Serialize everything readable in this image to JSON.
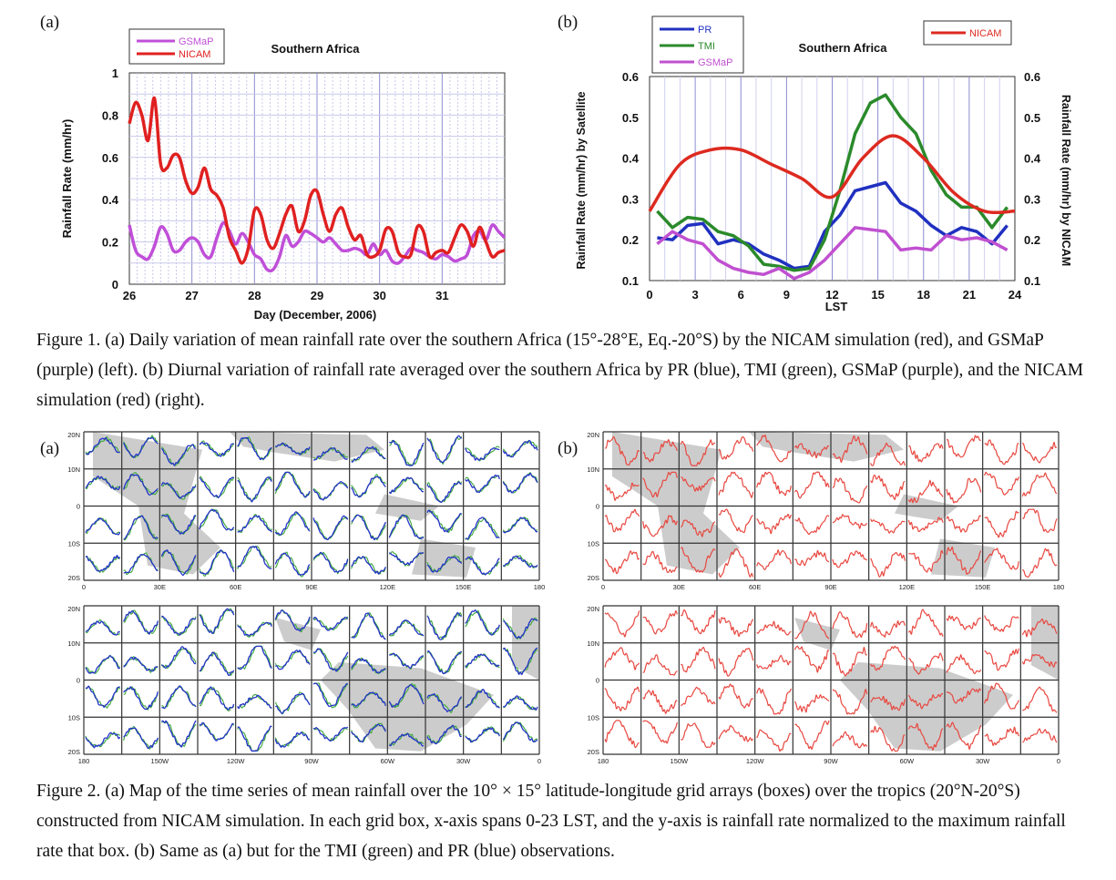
{
  "figure1": {
    "panel_a_label": "(a)",
    "panel_b_label": "(b)",
    "caption": "Figure 1. (a) Daily variation of mean rainfall rate over the southern Africa (15°-28°E, Eq.-20°S) by the NICAM simulation (red), and GSMaP (purple) (left). (b) Diurnal variation of rainfall rate averaged over the southern Africa by PR (blue), TMI (green), GSMaP (purple), and the NICAM simulation (red) (right)."
  },
  "figure2": {
    "panel_a_label": "(a)",
    "panel_b_label": "(b)",
    "lat_labels": [
      "20N",
      "10N",
      "0",
      "10S",
      "20S"
    ],
    "lon_labels_top": [
      "0",
      "30E",
      "60E",
      "90E",
      "120E",
      "150E",
      "180"
    ],
    "lon_labels_bottom": [
      "180",
      "150W",
      "120W",
      "90W",
      "60W",
      "30W",
      "0"
    ],
    "colors": {
      "nicam": "#e8473f",
      "tmi": "#3aa838",
      "pr": "#2432c8",
      "land": "#cccccc",
      "grid": "#333333"
    },
    "caption": "Figure 2. (a) Map of the time series of mean rainfall over the 10° × 15° latitude-longitude grid arrays (boxes) over the tropics (20°N-20°S) constructed from NICAM simulation. In each grid box, x-axis spans 0-23 LST, and the y-axis is rainfall rate normalized to the maximum rainfall rate that box. (b) Same as (a) but for the TMI (green) and PR (blue) observations."
  },
  "chart_data": [
    {
      "type": "line",
      "title": "Southern Africa",
      "xlabel": "Day (December, 2006)",
      "ylabel": "Rainfall Rate (mm/hr)",
      "x_ticks": [
        "26",
        "27",
        "28",
        "29",
        "30",
        "31"
      ],
      "y_ticks": [
        "0",
        "0.2",
        "0.4",
        "0.6",
        "0.8",
        "1"
      ],
      "xlim": [
        26,
        32
      ],
      "ylim": [
        0,
        1
      ],
      "grid": true,
      "legend_position": "top-left",
      "series": [
        {
          "name": "GSMaP",
          "color": "#c04fd8",
          "points": [
            [
              26.0,
              0.28
            ],
            [
              26.1,
              0.16
            ],
            [
              26.2,
              0.13
            ],
            [
              26.3,
              0.12
            ],
            [
              26.4,
              0.18
            ],
            [
              26.5,
              0.27
            ],
            [
              26.6,
              0.24
            ],
            [
              26.7,
              0.16
            ],
            [
              26.8,
              0.16
            ],
            [
              26.9,
              0.2
            ],
            [
              27.0,
              0.22
            ],
            [
              27.1,
              0.2
            ],
            [
              27.2,
              0.14
            ],
            [
              27.3,
              0.13
            ],
            [
              27.4,
              0.22
            ],
            [
              27.5,
              0.29
            ],
            [
              27.6,
              0.25
            ],
            [
              27.7,
              0.19
            ],
            [
              27.8,
              0.24
            ],
            [
              27.9,
              0.2
            ],
            [
              28.0,
              0.14
            ],
            [
              28.1,
              0.12
            ],
            [
              28.2,
              0.07
            ],
            [
              28.3,
              0.07
            ],
            [
              28.4,
              0.13
            ],
            [
              28.5,
              0.23
            ],
            [
              28.6,
              0.18
            ],
            [
              28.7,
              0.2
            ],
            [
              28.8,
              0.25
            ],
            [
              28.9,
              0.24
            ],
            [
              29.0,
              0.22
            ],
            [
              29.1,
              0.2
            ],
            [
              29.2,
              0.22
            ],
            [
              29.3,
              0.19
            ],
            [
              29.4,
              0.16
            ],
            [
              29.5,
              0.16
            ],
            [
              29.6,
              0.17
            ],
            [
              29.7,
              0.16
            ],
            [
              29.8,
              0.14
            ],
            [
              29.9,
              0.19
            ],
            [
              30.0,
              0.14
            ],
            [
              30.1,
              0.16
            ],
            [
              30.2,
              0.11
            ],
            [
              30.3,
              0.1
            ],
            [
              30.4,
              0.13
            ],
            [
              30.5,
              0.17
            ],
            [
              30.6,
              0.16
            ],
            [
              30.7,
              0.15
            ],
            [
              30.8,
              0.13
            ],
            [
              30.9,
              0.12
            ],
            [
              31.0,
              0.14
            ],
            [
              31.1,
              0.13
            ],
            [
              31.2,
              0.11
            ],
            [
              31.3,
              0.12
            ],
            [
              31.4,
              0.14
            ],
            [
              31.5,
              0.23
            ],
            [
              31.6,
              0.25
            ],
            [
              31.7,
              0.21
            ],
            [
              31.8,
              0.28
            ],
            [
              31.9,
              0.25
            ],
            [
              32.0,
              0.22
            ]
          ]
        },
        {
          "name": "NICAM",
          "color": "#e02020",
          "points": [
            [
              26.0,
              0.76
            ],
            [
              26.1,
              0.86
            ],
            [
              26.2,
              0.8
            ],
            [
              26.3,
              0.68
            ],
            [
              26.4,
              0.88
            ],
            [
              26.5,
              0.57
            ],
            [
              26.6,
              0.55
            ],
            [
              26.7,
              0.61
            ],
            [
              26.8,
              0.6
            ],
            [
              26.9,
              0.49
            ],
            [
              27.0,
              0.43
            ],
            [
              27.1,
              0.46
            ],
            [
              27.2,
              0.55
            ],
            [
              27.3,
              0.45
            ],
            [
              27.4,
              0.42
            ],
            [
              27.5,
              0.36
            ],
            [
              27.6,
              0.22
            ],
            [
              27.7,
              0.16
            ],
            [
              27.8,
              0.1
            ],
            [
              27.9,
              0.17
            ],
            [
              28.0,
              0.35
            ],
            [
              28.1,
              0.33
            ],
            [
              28.2,
              0.21
            ],
            [
              28.3,
              0.17
            ],
            [
              28.4,
              0.24
            ],
            [
              28.5,
              0.33
            ],
            [
              28.6,
              0.37
            ],
            [
              28.7,
              0.25
            ],
            [
              28.8,
              0.3
            ],
            [
              28.9,
              0.42
            ],
            [
              29.0,
              0.44
            ],
            [
              29.1,
              0.33
            ],
            [
              29.2,
              0.25
            ],
            [
              29.3,
              0.33
            ],
            [
              29.4,
              0.36
            ],
            [
              29.5,
              0.27
            ],
            [
              29.6,
              0.21
            ],
            [
              29.7,
              0.23
            ],
            [
              29.8,
              0.14
            ],
            [
              29.9,
              0.13
            ],
            [
              30.0,
              0.16
            ],
            [
              30.1,
              0.26
            ],
            [
              30.2,
              0.25
            ],
            [
              30.3,
              0.15
            ],
            [
              30.4,
              0.13
            ],
            [
              30.5,
              0.14
            ],
            [
              30.6,
              0.27
            ],
            [
              30.7,
              0.25
            ],
            [
              30.8,
              0.13
            ],
            [
              30.9,
              0.15
            ],
            [
              31.0,
              0.16
            ],
            [
              31.1,
              0.15
            ],
            [
              31.2,
              0.22
            ],
            [
              31.3,
              0.28
            ],
            [
              31.4,
              0.25
            ],
            [
              31.5,
              0.18
            ],
            [
              31.6,
              0.27
            ],
            [
              31.7,
              0.2
            ],
            [
              31.8,
              0.13
            ],
            [
              31.9,
              0.15
            ],
            [
              32.0,
              0.16
            ]
          ]
        }
      ]
    },
    {
      "type": "line",
      "title": "Southern Africa",
      "xlabel": "LST",
      "ylabel": "Rainfall Rate (mm/hr) by Satellite",
      "ylabel_right": "Rainfall Rate (mm/hr) by NICAM",
      "x_ticks": [
        "0",
        "3",
        "6",
        "9",
        "12",
        "15",
        "18",
        "21",
        "24"
      ],
      "y_ticks": [
        "0.1",
        "0.2",
        "0.3",
        "0.4",
        "0.5",
        "0.6"
      ],
      "xlim": [
        0,
        24
      ],
      "ylim": [
        0.1,
        0.6
      ],
      "ylim_right": [
        0.1,
        0.6
      ],
      "grid": true,
      "legend_position": "top-left",
      "legend_right_position": "top-right",
      "series": [
        {
          "name": "PR",
          "color": "#2030c0",
          "axis": "left",
          "x": [
            0.5,
            1.5,
            2.5,
            3.5,
            4.5,
            5.5,
            6.5,
            7.5,
            8.5,
            9.5,
            10.5,
            11.5,
            12.5,
            13.5,
            14.5,
            15.5,
            16.5,
            17.5,
            18.5,
            19.5,
            20.5,
            21.5,
            22.5,
            23.5
          ],
          "values": [
            0.205,
            0.2,
            0.235,
            0.24,
            0.19,
            0.2,
            0.19,
            0.165,
            0.15,
            0.13,
            0.135,
            0.22,
            0.26,
            0.32,
            0.33,
            0.34,
            0.29,
            0.27,
            0.235,
            0.21,
            0.23,
            0.22,
            0.19,
            0.235
          ]
        },
        {
          "name": "TMI",
          "color": "#2a8a2a",
          "axis": "left",
          "x": [
            0.5,
            1.5,
            2.5,
            3.5,
            4.5,
            5.5,
            6.5,
            7.5,
            8.5,
            9.5,
            10.5,
            11.5,
            12.5,
            13.5,
            14.5,
            15.5,
            16.5,
            17.5,
            18.5,
            19.5,
            20.5,
            21.5,
            22.5,
            23.5
          ],
          "values": [
            0.27,
            0.23,
            0.255,
            0.25,
            0.22,
            0.21,
            0.185,
            0.14,
            0.135,
            0.125,
            0.13,
            0.2,
            0.32,
            0.46,
            0.535,
            0.555,
            0.5,
            0.46,
            0.37,
            0.31,
            0.28,
            0.28,
            0.23,
            0.28
          ]
        },
        {
          "name": "GSMaP",
          "color": "#c050d0",
          "axis": "left",
          "x": [
            0.5,
            1.5,
            2.5,
            3.5,
            4.5,
            5.5,
            6.5,
            7.5,
            8.5,
            9.5,
            10.5,
            11.5,
            12.5,
            13.5,
            14.5,
            15.5,
            16.5,
            17.5,
            18.5,
            19.5,
            20.5,
            21.5,
            22.5,
            23.5
          ],
          "values": [
            0.19,
            0.22,
            0.2,
            0.19,
            0.15,
            0.13,
            0.12,
            0.115,
            0.13,
            0.105,
            0.12,
            0.15,
            0.19,
            0.23,
            0.225,
            0.22,
            0.175,
            0.18,
            0.175,
            0.21,
            0.2,
            0.205,
            0.195,
            0.175
          ]
        },
        {
          "name": "NICAM",
          "color": "#dd2a20",
          "axis": "right",
          "x": [
            0,
            2,
            4,
            6,
            8,
            10,
            12,
            14,
            16,
            18,
            20,
            22,
            24
          ],
          "values": [
            0.27,
            0.385,
            0.42,
            0.42,
            0.385,
            0.35,
            0.305,
            0.4,
            0.455,
            0.4,
            0.315,
            0.27,
            0.27
          ]
        }
      ]
    }
  ]
}
